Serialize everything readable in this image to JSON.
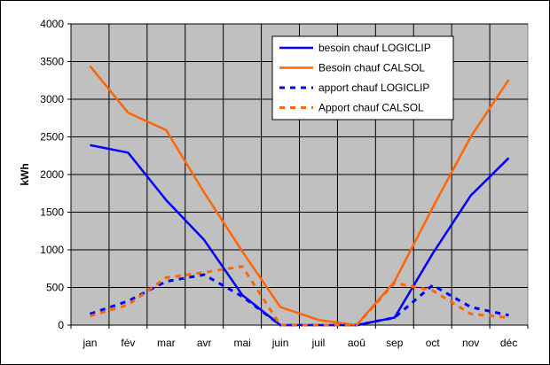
{
  "chart_data": {
    "type": "line",
    "title": "",
    "xlabel": "",
    "ylabel": "kWh",
    "ylim": [
      0,
      4000
    ],
    "y_ticks": [
      "0",
      "500",
      "1000",
      "1500",
      "2000",
      "2500",
      "3000",
      "3500",
      "4000"
    ],
    "categories": [
      "jan",
      "fév",
      "mar",
      "avr",
      "mai",
      "juin",
      "juil",
      "aoû",
      "sep",
      "oct",
      "nov",
      "déc"
    ],
    "grid": true,
    "legend_position": "top-right",
    "background": "#c0c0c0",
    "series": [
      {
        "name": "besoin chauf LOGICLIP",
        "color": "#0000ff",
        "style": "solid",
        "values": [
          2390,
          2290,
          1660,
          1130,
          400,
          0,
          0,
          0,
          100,
          950,
          1720,
          2220
        ]
      },
      {
        "name": "Besoin chauf CALSOL",
        "color": "#ff6600",
        "style": "solid",
        "values": [
          3440,
          2820,
          2590,
          1760,
          980,
          240,
          70,
          0,
          580,
          1560,
          2500,
          3260
        ]
      },
      {
        "name": "apport chauf LOGICLIP",
        "color": "#0000ff",
        "style": "dashed",
        "values": [
          150,
          320,
          580,
          670,
          380,
          0,
          0,
          0,
          100,
          530,
          240,
          130
        ]
      },
      {
        "name": "Apport chauf CALSOL",
        "color": "#ff6600",
        "style": "dashed",
        "values": [
          120,
          270,
          630,
          700,
          780,
          0,
          0,
          0,
          560,
          460,
          150,
          100
        ]
      }
    ]
  }
}
